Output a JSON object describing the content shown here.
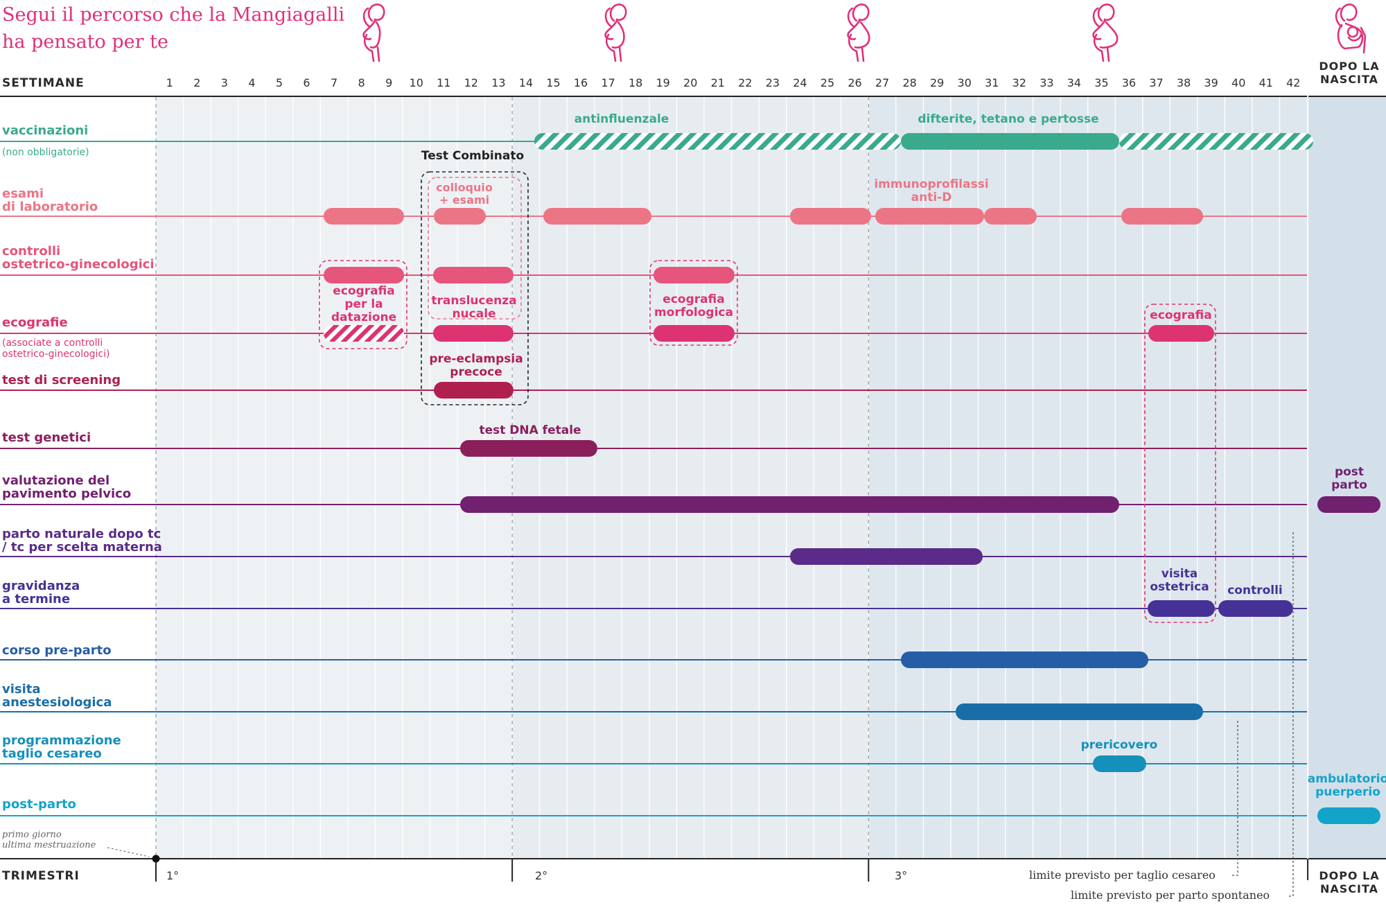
{
  "title_line1": "Segui il percorso che la Mangiagalli",
  "title_line2": "ha pensato per te",
  "header_weeks": "SETTIMANE",
  "header_trimesters": "TRIMESTRI",
  "dopo_top_1": "DOPO LA",
  "dopo_top_2": "NASCITA",
  "dopo_bottom_1": "DOPO LA",
  "dopo_bottom_2": "NASCITA",
  "weeks": [
    "1",
    "2",
    "3",
    "4",
    "5",
    "6",
    "7",
    "8",
    "9",
    "10",
    "11",
    "12",
    "13",
    "14",
    "15",
    "16",
    "17",
    "18",
    "19",
    "20",
    "21",
    "22",
    "23",
    "24",
    "25",
    "26",
    "27",
    "28",
    "29",
    "30",
    "31",
    "32",
    "33",
    "34",
    "35",
    "36",
    "37",
    "38",
    "39",
    "40",
    "41",
    "42"
  ],
  "trimesters": [
    "1°",
    "2°",
    "3°"
  ],
  "rows": {
    "vaccinazioni": {
      "label": "vaccinazioni",
      "sub": "(non obbligatorie)",
      "color": "#3aaa8c"
    },
    "esami": {
      "label1": "esami",
      "label2": "di laboratorio",
      "color": "#ec7585"
    },
    "controlli": {
      "label1": "controlli",
      "label2": "ostetrico-ginecologici",
      "color": "#e6557c"
    },
    "ecografie": {
      "label": "ecografie",
      "sub1": "(associate a controlli",
      "sub2": "ostetrico-ginecologici)",
      "color": "#dd3370"
    },
    "screening": {
      "label": "test di screening",
      "color": "#b0204e"
    },
    "genetici": {
      "label": "test genetici",
      "color": "#8a1f5c"
    },
    "pavimento": {
      "label1": "valutazione del",
      "label2": "pavimento pelvico",
      "color": "#722070"
    },
    "parto_naturale": {
      "label1": "parto naturale dopo tc",
      "label2": "/ tc per scelta materna",
      "color": "#5a2b88"
    },
    "termine": {
      "label1": "gravidanza",
      "label2": "a termine",
      "color": "#463196"
    },
    "corso": {
      "label": "corso pre-parto",
      "color": "#255ea6"
    },
    "anestesio": {
      "label1": "visita",
      "label2": "anestesiologica",
      "color": "#1a6ea8"
    },
    "cesareo": {
      "label1": "programmazione",
      "label2": "taglio cesareo",
      "color": "#1590bb"
    },
    "postparto": {
      "label": "post-parto",
      "color": "#12a3c9"
    }
  },
  "bar_labels": {
    "antinfluenzale": "antinfluenzale",
    "difterite": "difterite, tetano e pertosse",
    "test_combinato": "Test Combinato",
    "colloquio_1": "colloquio",
    "colloquio_2": "+ esami",
    "immuno_1": "immunoprofilassi",
    "immuno_2": "anti-D",
    "eco_datazione_1": "ecografia",
    "eco_datazione_2": "per la",
    "eco_datazione_3": "datazione",
    "translucenza_1": "translucenza",
    "translucenza_2": "nucale",
    "morfologica_1": "ecografia",
    "morfologica_2": "morfologica",
    "ecografia_37": "ecografia",
    "preeclampsia_1": "pre-eclampsia",
    "preeclampsia_2": "precoce",
    "dna": "test DNA fetale",
    "post_parto_1": "post",
    "post_parto_2": "parto",
    "visita_ostetrica_1": "visita",
    "visita_ostetrica_2": "ostetrica",
    "controlli": "controlli",
    "prericovero": "prericovero",
    "ambulatorio_1": "ambulatorio",
    "ambulatorio_2": "puerperio"
  },
  "notes": {
    "primo_giorno_1": "primo giorno",
    "primo_giorno_2": "ultima mestruazione",
    "limite_cesareo": "limite previsto per taglio cesareo",
    "limite_spontaneo": "limite previsto per parto spontaneo"
  },
  "colors": {
    "title": "#e0307a",
    "trimester_band_1": "#eef1f4",
    "trimester_band_2": "#e7ecf0",
    "trimester_band_3": "#dfe7ee",
    "after_birth_band": "#d3e0ea",
    "icon": "#e0307a"
  },
  "icons": [
    "pregnant-woman-icon",
    "pregnant-woman-icon",
    "pregnant-woman-icon",
    "pregnant-woman-icon",
    "mother-with-baby-icon"
  ]
}
